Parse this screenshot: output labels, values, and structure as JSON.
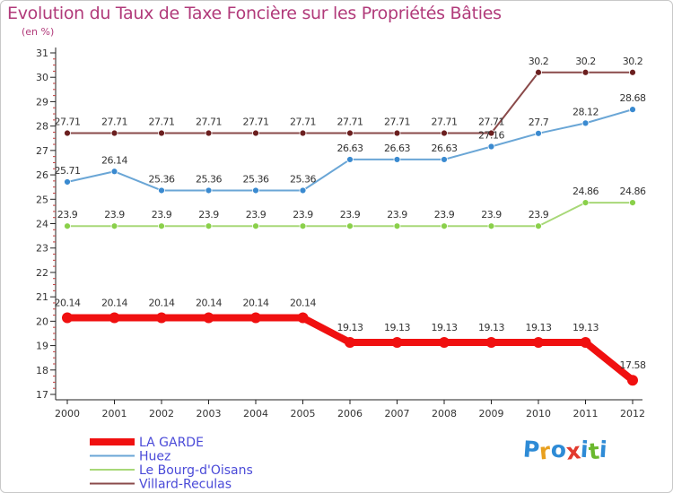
{
  "title": "Evolution du Taux de Taxe Foncière sur les Propriétés Bâties",
  "unit": "(en %)",
  "logo": {
    "letters": [
      "P",
      "r",
      "o",
      "x",
      "i",
      "t",
      "i"
    ],
    "colors": [
      "#2e8bd6",
      "#e8a020",
      "#2e8bd6",
      "#e23a2e",
      "#2e8bd6",
      "#6bb82e",
      "#2e8bd6"
    ]
  },
  "chart_data": {
    "type": "line",
    "title": "Evolution du Taux de Taxe Foncière sur les Propriétés Bâties",
    "ylabel": "(en %)",
    "x": [
      "2000",
      "2001",
      "2002",
      "2003",
      "2004",
      "2005",
      "2006",
      "2007",
      "2008",
      "2009",
      "2010",
      "2011",
      "2012"
    ],
    "ylim": [
      17,
      31
    ],
    "yticks": [
      "17",
      "18",
      "19",
      "20",
      "21",
      "22",
      "23",
      "24",
      "25",
      "26",
      "27",
      "28",
      "29",
      "30",
      "31"
    ],
    "series": [
      {
        "name": "Villard-Reculas",
        "color": "#6b1f1f",
        "line": "#8a4a4a",
        "values": [
          27.71,
          27.71,
          27.71,
          27.71,
          27.71,
          27.71,
          27.71,
          27.71,
          27.71,
          27.71,
          30.2,
          30.2,
          30.2
        ],
        "labels": [
          "27.71",
          "27.71",
          "27.71",
          "27.71",
          "27.71",
          "27.71",
          "27.71",
          "27.71",
          "27.71",
          "27.71",
          "30.2",
          "30.2",
          "30.2"
        ]
      },
      {
        "name": "Huez",
        "color": "#3a8ad0",
        "line": "#6aa6d6",
        "values": [
          25.71,
          26.14,
          25.36,
          25.36,
          25.36,
          25.36,
          26.63,
          26.63,
          26.63,
          27.16,
          27.7,
          28.12,
          28.68
        ],
        "labels": [
          "25.71",
          "26.14",
          "25.36",
          "25.36",
          "25.36",
          "25.36",
          "26.63",
          "26.63",
          "26.63",
          "27.16",
          "27.7",
          "28.12",
          "28.68"
        ]
      },
      {
        "name": "Le Bourg-d'Oisans",
        "color": "#8ad04a",
        "line": "#a8d878",
        "values": [
          23.9,
          23.9,
          23.9,
          23.9,
          23.9,
          23.9,
          23.9,
          23.9,
          23.9,
          23.9,
          23.9,
          24.86,
          24.86
        ],
        "labels": [
          "23.9",
          "23.9",
          "23.9",
          "23.9",
          "23.9",
          "23.9",
          "23.9",
          "23.9",
          "23.9",
          "23.9",
          "23.9",
          "24.86",
          "24.86"
        ]
      },
      {
        "name": "LA GARDE",
        "color": "#f01010",
        "line": "#f01010",
        "values": [
          20.14,
          20.14,
          20.14,
          20.14,
          20.14,
          20.14,
          19.13,
          19.13,
          19.13,
          19.13,
          19.13,
          19.13,
          17.58
        ],
        "labels": [
          "20.14",
          "20.14",
          "20.14",
          "20.14",
          "20.14",
          "20.14",
          "19.13",
          "19.13",
          "19.13",
          "19.13",
          "19.13",
          "19.13",
          "17.58"
        ]
      }
    ],
    "legend": [
      "LA GARDE",
      "Huez",
      "Le Bourg-d'Oisans",
      "Villard-Reculas"
    ],
    "legend_position": "bottom-left",
    "grid": false
  }
}
